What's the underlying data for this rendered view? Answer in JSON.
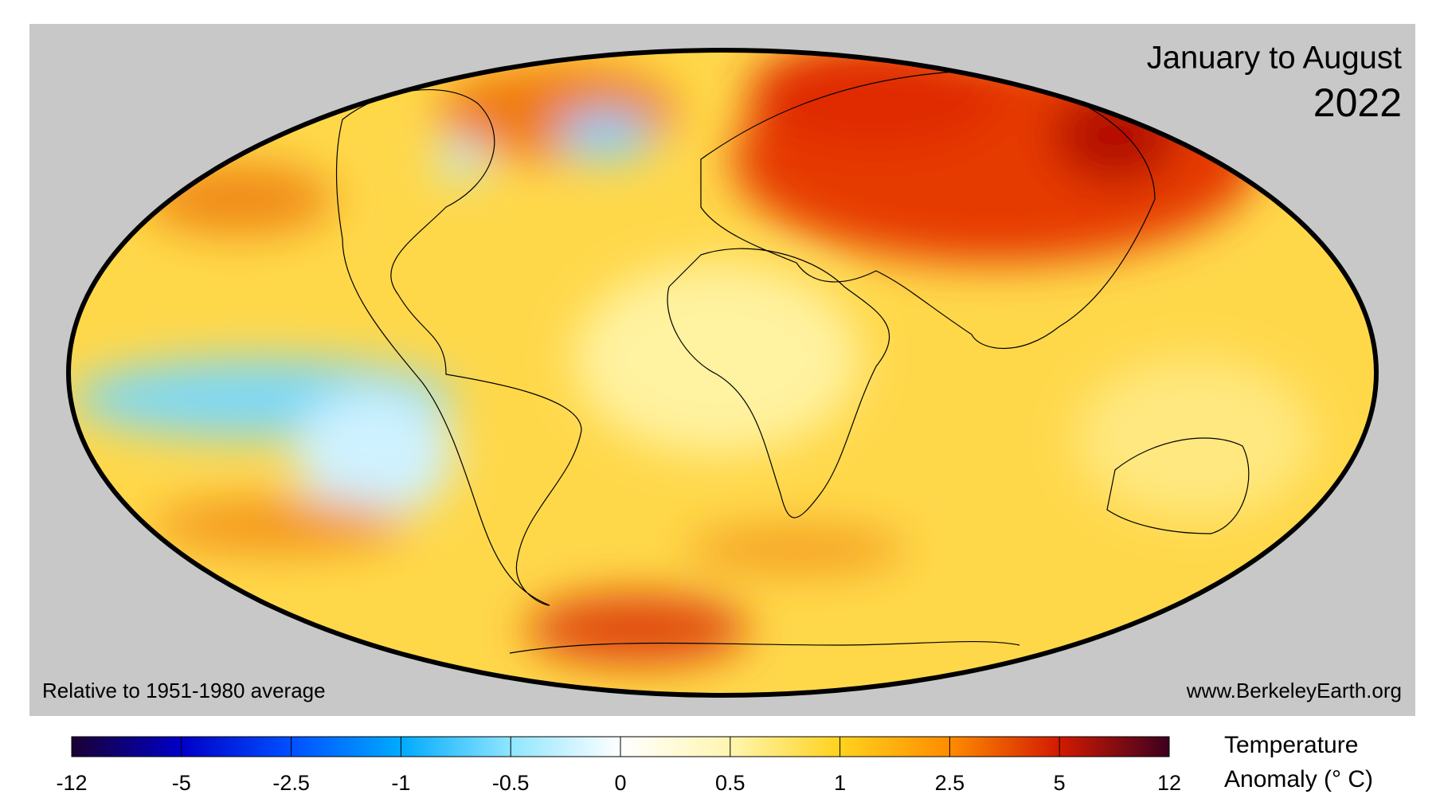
{
  "title": [
    "January to August",
    "2022"
  ],
  "note": "Relative to 1951-1980 average",
  "source": "www.BerkeleyEarth.org",
  "colorbar": {
    "label": [
      "Temperature",
      "Anomaly (° C)"
    ],
    "ticks": [
      -12,
      -5,
      -2.5,
      -1,
      -0.5,
      0,
      0.5,
      1,
      2.5,
      5,
      12
    ],
    "colors": [
      "#1a0033",
      "#0000c8",
      "#0050ff",
      "#00aaff",
      "#8fe6ff",
      "#ffffff",
      "#fff6b0",
      "#ffd21e",
      "#ff8c00",
      "#d21a00",
      "#3c0020"
    ]
  }
}
